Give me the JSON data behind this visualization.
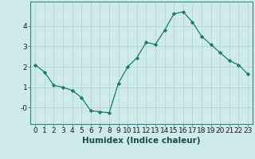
{
  "x": [
    0,
    1,
    2,
    3,
    4,
    5,
    6,
    7,
    8,
    9,
    10,
    11,
    12,
    13,
    14,
    15,
    16,
    17,
    18,
    19,
    20,
    21,
    22,
    23
  ],
  "y": [
    2.1,
    1.75,
    1.1,
    1.0,
    0.85,
    0.5,
    -0.15,
    -0.2,
    -0.25,
    1.2,
    2.0,
    2.45,
    3.2,
    3.1,
    3.8,
    4.6,
    4.7,
    4.2,
    3.5,
    3.1,
    2.7,
    2.3,
    2.1,
    1.65
  ],
  "line_color": "#1a7a6e",
  "marker": "D",
  "marker_size": 2.2,
  "bg_color": "#ceeaea",
  "grid_major_color": "#b8d8d8",
  "grid_minor_color": "#d4ecec",
  "xlabel": "Humidex (Indice chaleur)",
  "xlabel_fontsize": 7.5,
  "ylim": [
    -0.8,
    5.2
  ],
  "yticks": [
    0,
    1,
    2,
    3,
    4
  ],
  "ytick_labels": [
    "-0",
    "1",
    "2",
    "3",
    "4"
  ],
  "xlim": [
    -0.5,
    23.5
  ],
  "xtick_labels": [
    "0",
    "1",
    "2",
    "3",
    "4",
    "5",
    "6",
    "7",
    "8",
    "9",
    "10",
    "11",
    "12",
    "13",
    "14",
    "15",
    "16",
    "17",
    "18",
    "19",
    "20",
    "21",
    "22",
    "23"
  ],
  "tick_fontsize": 6.5,
  "axis_color": "#3a8080"
}
